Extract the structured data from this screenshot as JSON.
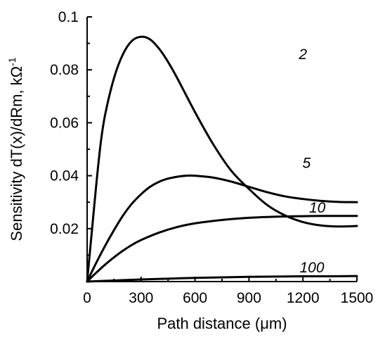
{
  "chart_data": {
    "type": "line",
    "xlabel": "Path distance (μm)",
    "ylabel": "Sensitivity dT(x)/dRm, kΩ",
    "ylabel_superscript": "-1",
    "xlim": [
      0,
      1500
    ],
    "ylim": [
      0,
      0.1
    ],
    "xticks": [
      0,
      300,
      600,
      900,
      1200,
      1500
    ],
    "yticks": [
      0.02,
      0.04,
      0.06,
      0.08,
      0.1
    ],
    "xtick_labels": [
      "0",
      "300",
      "600",
      "900",
      "1200",
      "1500"
    ],
    "ytick_labels": [
      "0.02",
      "0.04",
      "0.06",
      "0.08",
      "0.1"
    ],
    "grid": false,
    "legend": "none",
    "line_color": "#000000",
    "series": [
      {
        "name": "2",
        "x": [
          0,
          25,
          50,
          75,
          100,
          150,
          200,
          250,
          300,
          350,
          400,
          450,
          500,
          600,
          700,
          800,
          900,
          1000,
          1100,
          1200,
          1300,
          1400,
          1500
        ],
        "y": [
          0,
          0.018,
          0.036,
          0.052,
          0.063,
          0.077,
          0.086,
          0.091,
          0.0925,
          0.0915,
          0.088,
          0.083,
          0.077,
          0.064,
          0.052,
          0.042,
          0.035,
          0.029,
          0.025,
          0.0225,
          0.0212,
          0.0208,
          0.021
        ]
      },
      {
        "name": "5",
        "x": [
          0,
          50,
          100,
          150,
          200,
          250,
          300,
          350,
          400,
          450,
          500,
          550,
          600,
          700,
          800,
          900,
          1000,
          1100,
          1200,
          1300,
          1400,
          1500
        ],
        "y": [
          0,
          0.007,
          0.0135,
          0.0195,
          0.025,
          0.0295,
          0.033,
          0.0358,
          0.0377,
          0.0389,
          0.0396,
          0.04,
          0.04,
          0.0393,
          0.0378,
          0.0358,
          0.0338,
          0.0322,
          0.0312,
          0.0305,
          0.0301,
          0.03
        ]
      },
      {
        "name": "10",
        "x": [
          0,
          50,
          100,
          150,
          200,
          250,
          300,
          400,
          500,
          600,
          700,
          800,
          900,
          1000,
          1100,
          1200,
          1300,
          1400,
          1500
        ],
        "y": [
          0,
          0.0033,
          0.0064,
          0.0092,
          0.0117,
          0.0139,
          0.0157,
          0.0185,
          0.0206,
          0.022,
          0.0229,
          0.0236,
          0.0241,
          0.0244,
          0.0246,
          0.0247,
          0.0248,
          0.0248,
          0.0248
        ]
      },
      {
        "name": "100",
        "x": [
          0,
          150,
          300,
          450,
          600,
          750,
          900,
          1050,
          1200,
          1350,
          1500
        ],
        "y": [
          0,
          0.0004,
          0.0008,
          0.0011,
          0.0014,
          0.0016,
          0.0018,
          0.0019,
          0.002,
          0.002,
          0.0021
        ]
      }
    ],
    "annotations": [
      {
        "text": "2",
        "x": 1200,
        "y": 0.084
      },
      {
        "text": "5",
        "x": 1220,
        "y": 0.043
      },
      {
        "text": "10",
        "x": 1280,
        "y": 0.026
      },
      {
        "text": "100",
        "x": 1250,
        "y": 0.0035
      }
    ]
  }
}
